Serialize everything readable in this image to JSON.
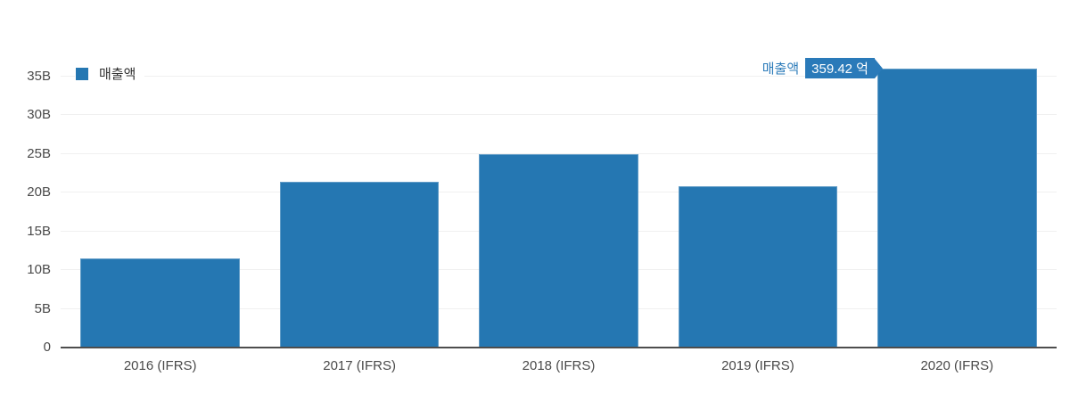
{
  "legend": {
    "label": "매출액"
  },
  "tooltip": {
    "series_label": "매출액",
    "value_label": "359.42 억"
  },
  "colors": {
    "bar": "#2577b2",
    "badge_bg": "#2a7ab9",
    "tooltip_label_text": "#2d7cba",
    "axis_line": "#4d4d4d",
    "gridline": "#f0f0f0",
    "tick_text": "#4a4a4a",
    "legend_text": "#333333"
  },
  "chart_data": {
    "type": "bar",
    "title": "",
    "categories": [
      "2016 (IFRS)",
      "2017 (IFRS)",
      "2018 (IFRS)",
      "2019 (IFRS)",
      "2020 (IFRS)"
    ],
    "series": [
      {
        "name": "매출액",
        "values_billions": [
          11.45,
          21.4,
          24.95,
          20.85,
          35.94
        ]
      }
    ],
    "highlight": {
      "category": "2020 (IFRS)",
      "series": "매출액",
      "value_label": "359.42 억"
    },
    "xlabel": "",
    "ylabel": "",
    "ytick_values": [
      0,
      5,
      10,
      15,
      20,
      25,
      30,
      35
    ],
    "ytick_labels": [
      "0",
      "5B",
      "10B",
      "15B",
      "20B",
      "25B",
      "30B",
      "35B"
    ],
    "ylim": [
      0,
      36
    ],
    "grid": "horizontal",
    "legend_position": "top-left"
  }
}
